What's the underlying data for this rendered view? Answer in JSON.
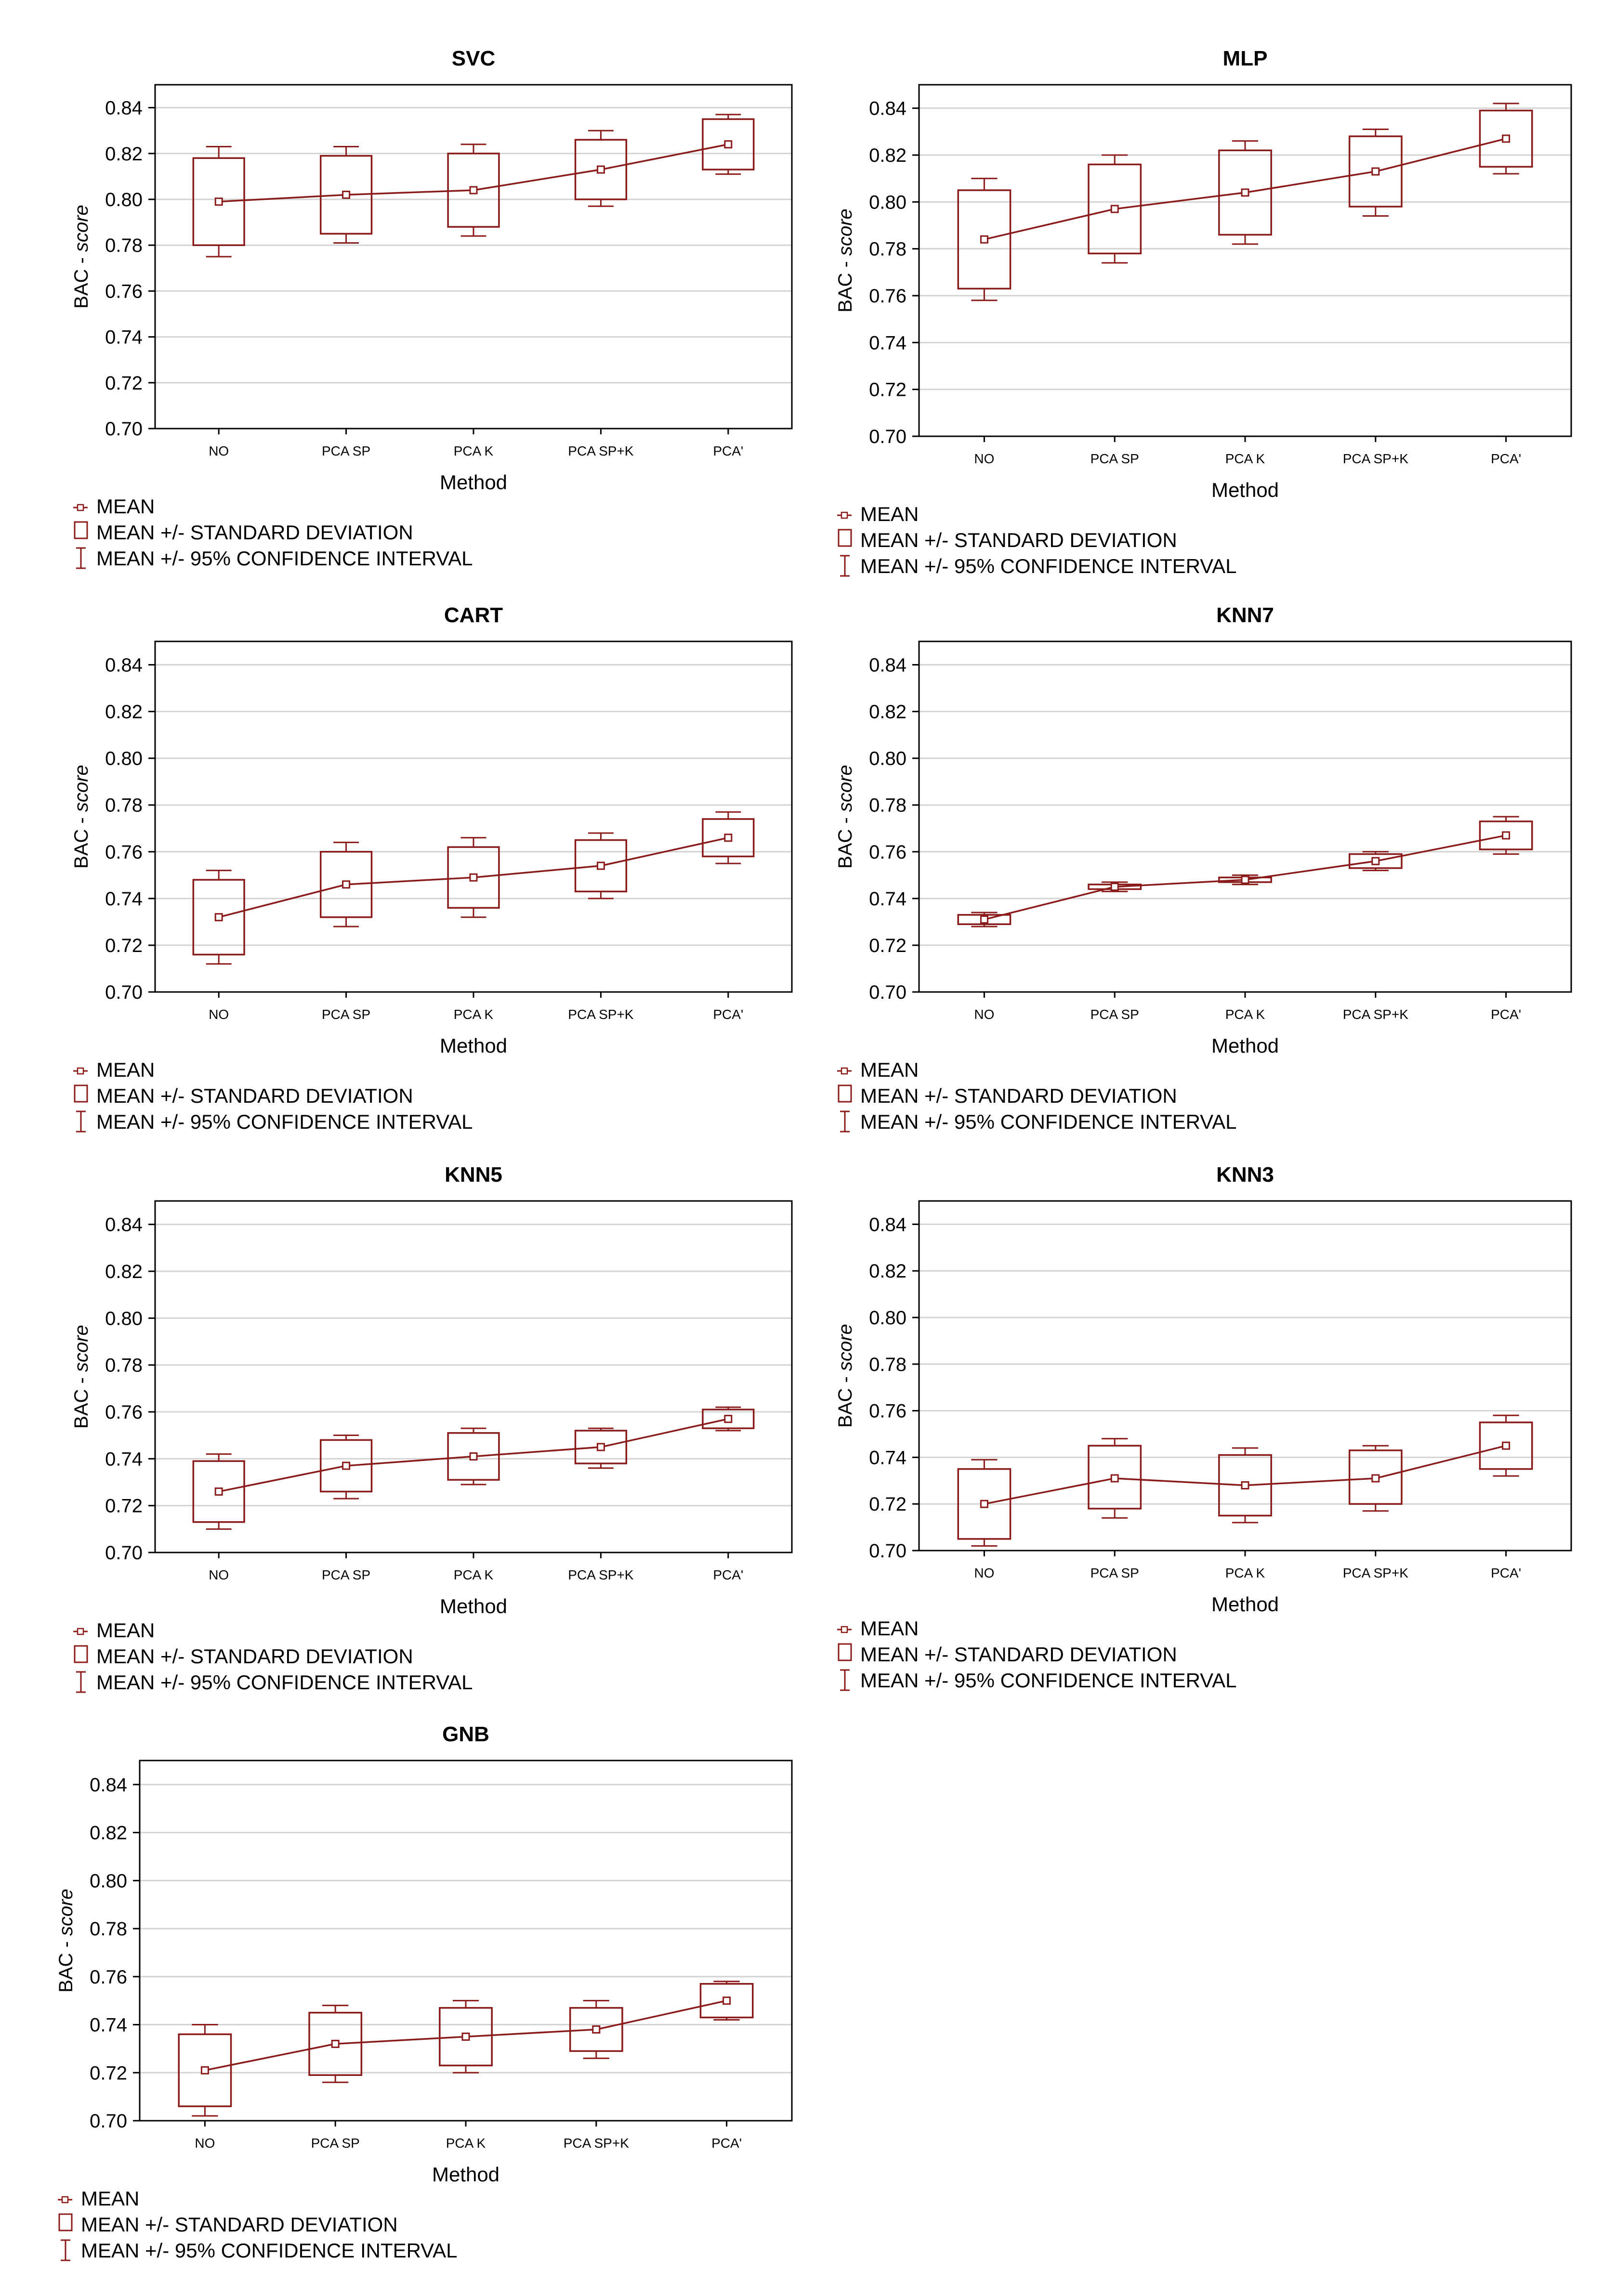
{
  "style": {
    "series_color": "#8B1A1A",
    "frame_color": "#000000",
    "grid_color": "#d4d4d4",
    "background": "#ffffff"
  },
  "common": {
    "xlabel": "Method",
    "ylabel_prefix": "BAC - ",
    "ylabel_italic": "score",
    "legend": {
      "mean": "MEAN",
      "sd": "MEAN +/- STANDARD DEVIATION",
      "ci": "MEAN +/- 95% CONFIDENCE INTERVAL"
    }
  },
  "chart_data": [
    {
      "type": "box",
      "title": "SVC",
      "categories": [
        "NO",
        "PCA SP",
        "PCA K",
        "PCA SP+K",
        "PCA'"
      ],
      "ylim": [
        0.7,
        0.85
      ],
      "yticks": [
        "0.70",
        "0.72",
        "0.74",
        "0.76",
        "0.78",
        "0.80",
        "0.82",
        "0.84"
      ],
      "mean": [
        0.799,
        0.802,
        0.804,
        0.813,
        0.824
      ],
      "sd_low": [
        0.78,
        0.785,
        0.788,
        0.8,
        0.813
      ],
      "sd_high": [
        0.818,
        0.819,
        0.82,
        0.826,
        0.835
      ],
      "ci_low": [
        0.775,
        0.781,
        0.784,
        0.797,
        0.811
      ],
      "ci_high": [
        0.823,
        0.823,
        0.824,
        0.83,
        0.837
      ]
    },
    {
      "type": "box",
      "title": "MLP",
      "categories": [
        "NO",
        "PCA SP",
        "PCA K",
        "PCA SP+K",
        "PCA'"
      ],
      "ylim": [
        0.7,
        0.85
      ],
      "yticks": [
        "0.70",
        "0.72",
        "0.74",
        "0.76",
        "0.78",
        "0.80",
        "0.82",
        "0.84"
      ],
      "mean": [
        0.784,
        0.797,
        0.804,
        0.813,
        0.827
      ],
      "sd_low": [
        0.763,
        0.778,
        0.786,
        0.798,
        0.815
      ],
      "sd_high": [
        0.805,
        0.816,
        0.822,
        0.828,
        0.839
      ],
      "ci_low": [
        0.758,
        0.774,
        0.782,
        0.794,
        0.812
      ],
      "ci_high": [
        0.81,
        0.82,
        0.826,
        0.831,
        0.842
      ]
    },
    {
      "type": "box",
      "title": "CART",
      "categories": [
        "NO",
        "PCA SP",
        "PCA K",
        "PCA SP+K",
        "PCA'"
      ],
      "ylim": [
        0.7,
        0.85
      ],
      "yticks": [
        "0.70",
        "0.72",
        "0.74",
        "0.76",
        "0.78",
        "0.80",
        "0.82",
        "0.84"
      ],
      "mean": [
        0.732,
        0.746,
        0.749,
        0.754,
        0.766
      ],
      "sd_low": [
        0.716,
        0.732,
        0.736,
        0.743,
        0.758
      ],
      "sd_high": [
        0.748,
        0.76,
        0.762,
        0.765,
        0.774
      ],
      "ci_low": [
        0.712,
        0.728,
        0.732,
        0.74,
        0.755
      ],
      "ci_high": [
        0.752,
        0.764,
        0.766,
        0.768,
        0.777
      ]
    },
    {
      "type": "box",
      "title": "KNN7",
      "categories": [
        "NO",
        "PCA SP",
        "PCA K",
        "PCA SP+K",
        "PCA'"
      ],
      "ylim": [
        0.7,
        0.85
      ],
      "yticks": [
        "0.70",
        "0.72",
        "0.74",
        "0.76",
        "0.78",
        "0.80",
        "0.82",
        "0.84"
      ],
      "mean": [
        0.731,
        0.745,
        0.748,
        0.756,
        0.767
      ],
      "sd_low": [
        0.729,
        0.744,
        0.747,
        0.753,
        0.761
      ],
      "sd_high": [
        0.733,
        0.746,
        0.749,
        0.759,
        0.773
      ],
      "ci_low": [
        0.728,
        0.743,
        0.746,
        0.752,
        0.759
      ],
      "ci_high": [
        0.734,
        0.747,
        0.75,
        0.76,
        0.775
      ]
    },
    {
      "type": "box",
      "title": "KNN5",
      "categories": [
        "NO",
        "PCA SP",
        "PCA K",
        "PCA SP+K",
        "PCA'"
      ],
      "ylim": [
        0.7,
        0.85
      ],
      "yticks": [
        "0.70",
        "0.72",
        "0.74",
        "0.76",
        "0.78",
        "0.80",
        "0.82",
        "0.84"
      ],
      "mean": [
        0.726,
        0.737,
        0.741,
        0.745,
        0.757
      ],
      "sd_low": [
        0.713,
        0.726,
        0.731,
        0.738,
        0.753
      ],
      "sd_high": [
        0.739,
        0.748,
        0.751,
        0.752,
        0.761
      ],
      "ci_low": [
        0.71,
        0.723,
        0.729,
        0.736,
        0.752
      ],
      "ci_high": [
        0.742,
        0.75,
        0.753,
        0.753,
        0.762
      ]
    },
    {
      "type": "box",
      "title": "KNN3",
      "categories": [
        "NO",
        "PCA SP",
        "PCA K",
        "PCA SP+K",
        "PCA'"
      ],
      "ylim": [
        0.7,
        0.85
      ],
      "yticks": [
        "0.70",
        "0.72",
        "0.74",
        "0.76",
        "0.78",
        "0.80",
        "0.82",
        "0.84"
      ],
      "mean": [
        0.72,
        0.731,
        0.728,
        0.731,
        0.745
      ],
      "sd_low": [
        0.705,
        0.718,
        0.715,
        0.72,
        0.735
      ],
      "sd_high": [
        0.735,
        0.745,
        0.741,
        0.743,
        0.755
      ],
      "ci_low": [
        0.702,
        0.714,
        0.712,
        0.717,
        0.732
      ],
      "ci_high": [
        0.739,
        0.748,
        0.744,
        0.745,
        0.758
      ]
    },
    {
      "type": "box",
      "title": "GNB",
      "categories": [
        "NO",
        "PCA SP",
        "PCA K",
        "PCA SP+K",
        "PCA'"
      ],
      "ylim": [
        0.7,
        0.85
      ],
      "yticks": [
        "0.70",
        "0.72",
        "0.74",
        "0.76",
        "0.78",
        "0.80",
        "0.82",
        "0.84"
      ],
      "mean": [
        0.721,
        0.732,
        0.735,
        0.738,
        0.75
      ],
      "sd_low": [
        0.706,
        0.719,
        0.723,
        0.729,
        0.743
      ],
      "sd_high": [
        0.736,
        0.745,
        0.747,
        0.747,
        0.757
      ],
      "ci_low": [
        0.702,
        0.716,
        0.72,
        0.726,
        0.742
      ],
      "ci_high": [
        0.74,
        0.748,
        0.75,
        0.75,
        0.758
      ]
    }
  ]
}
